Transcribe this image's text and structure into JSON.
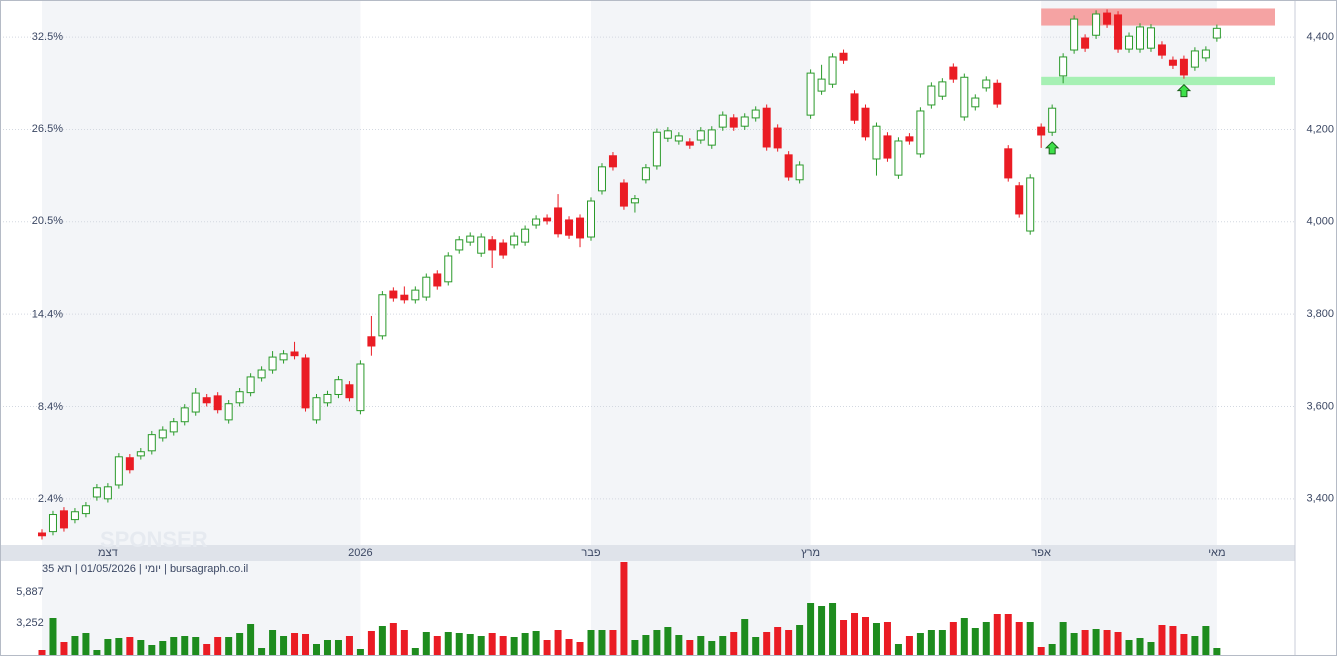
{
  "chart_data": {
    "type": "candlestick",
    "categories": [
      null,
      null,
      null,
      null,
      null,
      null,
      "דצמ",
      null,
      null,
      null,
      null,
      null,
      null,
      null,
      null,
      null,
      null,
      null,
      null,
      null,
      null,
      null,
      null,
      null,
      null,
      null,
      null,
      null,
      null,
      "2026",
      null,
      null,
      null,
      null,
      null,
      null,
      null,
      null,
      null,
      null,
      null,
      null,
      null,
      null,
      null,
      null,
      null,
      null,
      null,
      null,
      "פבר",
      null,
      null,
      null,
      null,
      null,
      null,
      null,
      null,
      null,
      null,
      null,
      null,
      null,
      null,
      null,
      null,
      null,
      null,
      null,
      "מרץ",
      null,
      null,
      null,
      null,
      null,
      null,
      null,
      null,
      null,
      null,
      null,
      null,
      null,
      null,
      null,
      null,
      null,
      null,
      null,
      null,
      "אפר",
      null,
      null,
      null,
      null,
      null,
      null,
      null,
      null,
      null,
      null,
      null,
      null,
      null,
      null,
      null,
      "מאי"
    ],
    "open": [
      3326,
      3329,
      3374,
      3355,
      3368,
      3404,
      3400,
      3430,
      3489,
      3493,
      3504,
      3532,
      3545,
      3567,
      3588,
      3619,
      3623,
      3571,
      3608,
      3630,
      3662,
      3679,
      3701,
      3718,
      3705,
      3571,
      3608,
      3626,
      3647,
      3591,
      3751,
      3753,
      3850,
      3841,
      3831,
      3837,
      3887,
      3870,
      3939,
      3956,
      3932,
      3961,
      3954,
      3950,
      3956,
      3993,
      4008,
      4030,
      4004,
      4008,
      3967,
      4067,
      4143,
      4084,
      4041,
      4091,
      4121,
      4181,
      4175,
      4173,
      4177,
      4166,
      4205,
      4225,
      4207,
      4225,
      4246,
      4203,
      4145,
      4091,
      4231,
      4283,
      4298,
      4365,
      4277,
      4246,
      4136,
      4186,
      4101,
      4184,
      4147,
      4253,
      4272,
      4335,
      4227,
      4249,
      4290,
      4300,
      4158,
      4078,
      3980,
      4205,
      4194,
      4316,
      4372,
      4398,
      4404,
      4452,
      4448,
      4374,
      4374,
      4376,
      4383,
      4350,
      4352,
      4335,
      4355,
      4398
    ],
    "high": [
      3334,
      3374,
      3382,
      3380,
      3393,
      3432,
      3434,
      3499,
      3497,
      3510,
      3547,
      3557,
      3575,
      3605,
      3640,
      3627,
      3631,
      3614,
      3640,
      3672,
      3687,
      3720,
      3722,
      3740,
      3713,
      3627,
      3634,
      3666,
      3655,
      3700,
      3796,
      3850,
      3858,
      3860,
      3860,
      3888,
      3895,
      3934,
      3969,
      3977,
      3975,
      3969,
      3962,
      3977,
      3992,
      4014,
      4016,
      4060,
      4012,
      4016,
      4053,
      4127,
      4151,
      4092,
      4058,
      4125,
      4202,
      4205,
      4194,
      4181,
      4205,
      4207,
      4239,
      4233,
      4235,
      4250,
      4254,
      4211,
      4153,
      4131,
      4330,
      4340,
      4365,
      4373,
      4285,
      4254,
      4215,
      4194,
      4183,
      4192,
      4248,
      4302,
      4311,
      4343,
      4321,
      4276,
      4315,
      4308,
      4166,
      4086,
      4103,
      4213,
      4254,
      4365,
      4447,
      4406,
      4458,
      4460,
      4456,
      4410,
      4430,
      4428,
      4391,
      4358,
      4360,
      4378,
      4380,
      4427
    ],
    "low": [
      3312,
      3321,
      3329,
      3347,
      3360,
      3396,
      3392,
      3422,
      3455,
      3485,
      3496,
      3524,
      3537,
      3559,
      3580,
      3600,
      3585,
      3563,
      3600,
      3622,
      3654,
      3671,
      3693,
      3702,
      3589,
      3563,
      3600,
      3618,
      3611,
      3583,
      3710,
      3745,
      3827,
      3823,
      3823,
      3829,
      3853,
      3862,
      3931,
      3948,
      3924,
      3900,
      3920,
      3942,
      3948,
      3985,
      3994,
      3966,
      3963,
      3945,
      3959,
      4059,
      4111,
      4026,
      4020,
      4083,
      4113,
      4173,
      4167,
      4158,
      4169,
      4158,
      4197,
      4197,
      4199,
      4217,
      4154,
      4152,
      4089,
      4083,
      4223,
      4275,
      4290,
      4342,
      4212,
      4176,
      4100,
      4130,
      4093,
      4167,
      4139,
      4245,
      4264,
      4301,
      4219,
      4241,
      4282,
      4247,
      4087,
      4009,
      3972,
      4160,
      4186,
      4300,
      4364,
      4368,
      4396,
      4420,
      4366,
      4366,
      4366,
      4368,
      4353,
      4331,
      4310,
      4327,
      4347,
      4390
    ],
    "close": [
      3320,
      3366,
      3337,
      3372,
      3385,
      3424,
      3426,
      3491,
      3463,
      3502,
      3539,
      3549,
      3567,
      3597,
      3629,
      3608,
      3593,
      3606,
      3632,
      3664,
      3679,
      3707,
      3714,
      3710,
      3597,
      3619,
      3626,
      3658,
      3619,
      3692,
      3731,
      3842,
      3835,
      3831,
      3852,
      3880,
      3861,
      3926,
      3961,
      3969,
      3967,
      3939,
      3928,
      3969,
      3984,
      4006,
      4002,
      3974,
      3971,
      3965,
      4045,
      4119,
      4119,
      4034,
      4050,
      4117,
      4194,
      4197,
      4186,
      4166,
      4197,
      4199,
      4231,
      4205,
      4227,
      4242,
      4162,
      4160,
      4097,
      4123,
      4322,
      4309,
      4357,
      4350,
      4220,
      4184,
      4207,
      4138,
      4175,
      4175,
      4240,
      4294,
      4303,
      4309,
      4313,
      4268,
      4307,
      4255,
      4095,
      4017,
      4095,
      4188,
      4246,
      4357,
      4439,
      4376,
      4450,
      4428,
      4374,
      4402,
      4422,
      4420,
      4361,
      4339,
      4318,
      4370,
      4372,
      4419
    ],
    "volume": [
      957,
      3677,
      1637,
      2147,
      2402,
      957,
      1892,
      1977,
      2062,
      1807,
      1382,
      1722,
      2062,
      2147,
      2062,
      1467,
      2062,
      2062,
      2402,
      3167,
      1127,
      2657,
      2147,
      2402,
      2317,
      1467,
      1807,
      1807,
      2147,
      1042,
      2572,
      2997,
      3252,
      2657,
      1127,
      2487,
      2147,
      2487,
      2402,
      2317,
      2147,
      2402,
      2147,
      2062,
      2402,
      2572,
      1807,
      2657,
      1892,
      1637,
      2657,
      2657,
      2657,
      8437,
      1807,
      2232,
      2657,
      2912,
      2232,
      1807,
      2147,
      1722,
      2147,
      2487,
      3592,
      2062,
      2487,
      2912,
      2657,
      3082,
      4952,
      4697,
      4952,
      3507,
      4102,
      3762,
      3252,
      3337,
      1467,
      2147,
      2402,
      2657,
      2657,
      3337,
      3677,
      2827,
      3337,
      4017,
      4017,
      3337,
      3337,
      1212,
      1467,
      3337,
      2402,
      2657,
      2742,
      2657,
      2487,
      1807,
      1977,
      1637,
      3082,
      2997,
      2317,
      2147,
      2997,
      1127
    ],
    "up_color": "#2a9a2a",
    "down_color": "#ea1c24",
    "ylim": [
      3300,
      4476
    ],
    "yticks": [
      {
        "value": 3400,
        "label": "3,400"
      },
      {
        "value": 3600,
        "label": "3,600"
      },
      {
        "value": 3800,
        "label": "3,800"
      },
      {
        "value": 4000,
        "label": "4,000"
      },
      {
        "value": 4200,
        "label": "4,200"
      },
      {
        "value": 4400,
        "label": "4,400"
      }
    ],
    "y2lim": [
      -0.59,
      34.77
    ],
    "y2ticks": [
      {
        "value": 2.4,
        "label": "2.4%"
      },
      {
        "value": 8.4,
        "label": "8.4%"
      },
      {
        "value": 14.4,
        "label": "14.4%"
      },
      {
        "value": 20.5,
        "label": "20.5%"
      },
      {
        "value": 26.5,
        "label": "26.5%"
      },
      {
        "value": 32.5,
        "label": "32.5%"
      }
    ],
    "volume_lim": [
      532,
      8607
    ],
    "volume_ticks": [
      {
        "value": 3252,
        "label": "3,252"
      },
      {
        "value": 5887,
        "label": "5,887"
      }
    ],
    "grid": true,
    "zones": [
      {
        "low": 4425,
        "high": 4462,
        "start": 91,
        "color": "#f5a3a3"
      },
      {
        "low": 4296,
        "high": 4314,
        "start": 91,
        "color": "#a6f0b4"
      }
    ],
    "buy_signals": [
      92,
      104
    ],
    "caption": "יומי | 01/05/2026 | תא 35 | bursagraph.co.il",
    "watermark": "SPONSER"
  }
}
